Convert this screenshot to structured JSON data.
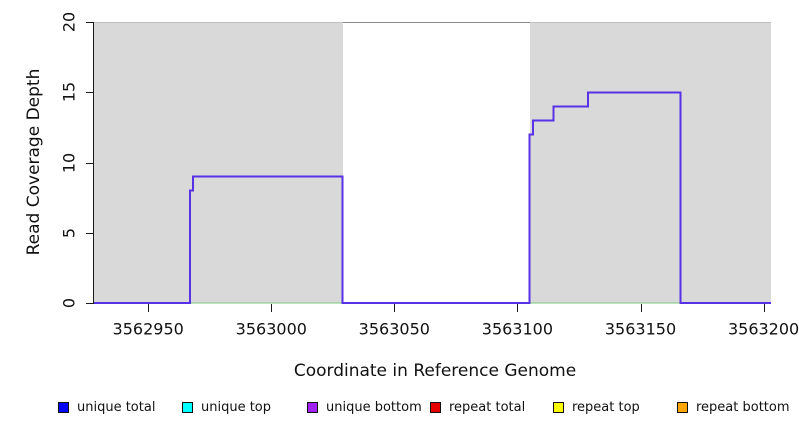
{
  "chart_data": {
    "type": "line",
    "title": "",
    "xlabel": "Coordinate in Reference Genome",
    "ylabel": "Read Coverage Depth",
    "xlim": [
      3562928,
      3563203
    ],
    "ylim": [
      0,
      20
    ],
    "x_ticks": [
      3562950,
      3563000,
      3563050,
      3563100,
      3563150,
      3563200
    ],
    "y_ticks": [
      0,
      5,
      10,
      15,
      20
    ],
    "grid": false,
    "legend_position": "bottom",
    "shaded_regions": [
      {
        "name": "aligned-region-left",
        "x0": 3562928,
        "x1": 3563029,
        "fill": "#d9d9d9"
      },
      {
        "name": "aligned-region-right",
        "x0": 3563105,
        "x1": 3563203,
        "fill": "#d9d9d9"
      }
    ],
    "gap_top_line": {
      "x0": 3563029,
      "x1": 3563105,
      "y": 20,
      "color": "#8a8a8a"
    },
    "series": [
      {
        "name": "zero-baseline",
        "color": "#7cc87c",
        "width": 1,
        "points": [
          [
            3562928,
            0
          ],
          [
            3563203,
            0
          ]
        ]
      },
      {
        "name": "unique-bottom-coverage",
        "color": "#5631e6",
        "width": 2,
        "points": [
          [
            3562928,
            0
          ],
          [
            3562967,
            0
          ],
          [
            3562967,
            8
          ],
          [
            3562968.3,
            8
          ],
          [
            3562968.3,
            9
          ],
          [
            3563029,
            9
          ],
          [
            3563029,
            0
          ],
          [
            3563105,
            0
          ],
          [
            3563105,
            12
          ],
          [
            3563106.3,
            12
          ],
          [
            3563106.3,
            13
          ],
          [
            3563114.7,
            13
          ],
          [
            3563114.7,
            14
          ],
          [
            3563128.7,
            14
          ],
          [
            3563128.7,
            15
          ],
          [
            3563166.2,
            15
          ],
          [
            3563166.2,
            0
          ],
          [
            3563203,
            0
          ]
        ]
      }
    ],
    "legend": [
      {
        "label": "unique total",
        "color": "#0000ff"
      },
      {
        "label": "unique top",
        "color": "#00ffff"
      },
      {
        "label": "unique bottom",
        "color": "#a020f0"
      },
      {
        "label": "repeat total",
        "color": "#e50000"
      },
      {
        "label": "repeat top",
        "color": "#ffff00"
      },
      {
        "label": "repeat bottom",
        "color": "#ffa500"
      }
    ]
  }
}
